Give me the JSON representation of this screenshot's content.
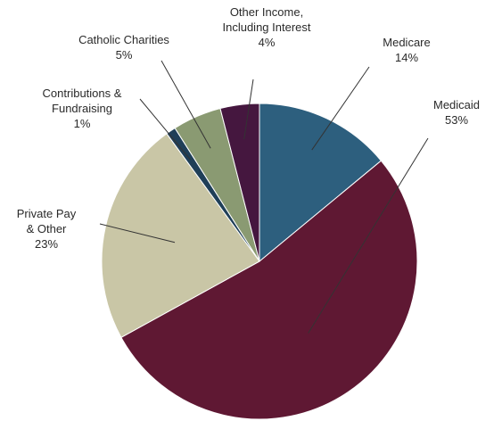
{
  "chart_data": {
    "type": "pie",
    "title": "",
    "slices": [
      {
        "label_lines": [
          "Medicare"
        ],
        "percent_label": "14%",
        "value": 14,
        "color": "#2d5f7e"
      },
      {
        "label_lines": [
          "Medicaid"
        ],
        "percent_label": "53%",
        "value": 53,
        "color": "#5f1833"
      },
      {
        "label_lines": [
          "Private Pay",
          "& Other"
        ],
        "percent_label": "23%",
        "value": 23,
        "color": "#c9c6a6"
      },
      {
        "label_lines": [
          "Contributions &",
          "Fundraising"
        ],
        "percent_label": "1%",
        "value": 1,
        "color": "#1f3f58"
      },
      {
        "label_lines": [
          "Catholic Charities"
        ],
        "percent_label": "5%",
        "value": 5,
        "color": "#8a9a72"
      },
      {
        "label_lines": [
          "Other Income,",
          "Including Interest"
        ],
        "percent_label": "4%",
        "value": 4,
        "color": "#45173f"
      }
    ],
    "start_at": "12 o'clock",
    "direction": "clockwise",
    "legend": "none"
  }
}
